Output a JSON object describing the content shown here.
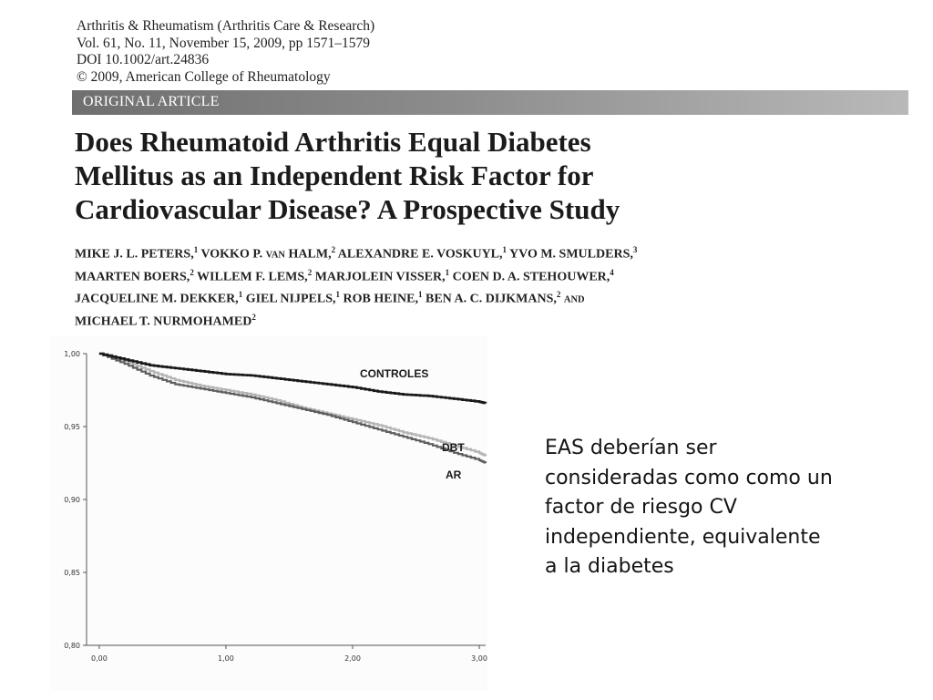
{
  "journal": {
    "line1": "Arthritis & Rheumatism (Arthritis Care & Research)",
    "line2": "Vol. 61, No. 11, November 15, 2009, pp 1571–1579",
    "line3": "DOI 10.1002/art.24836",
    "line4": "© 2009, American College of Rheumatology"
  },
  "article_type": "ORIGINAL ARTICLE",
  "title": {
    "line1": "Does Rheumatoid Arthritis Equal Diabetes",
    "line2": "Mellitus as an Independent Risk Factor for",
    "line3": "Cardiovascular Disease? A Prospective Study"
  },
  "authors": {
    "line1": [
      {
        "name": "MIKE J. L. PETERS,",
        "sup": "1"
      },
      {
        "name": " VOKKO P. ",
        "sc": "VAN",
        "name2": " HALM,",
        "sup": "2"
      },
      {
        "name": " ALEXANDRE E. VOSKUYL,",
        "sup": "1"
      },
      {
        "name": " YVO M. SMULDERS,",
        "sup": "3"
      }
    ],
    "line2": [
      {
        "name": "MAARTEN BOERS,",
        "sup": "2"
      },
      {
        "name": " WILLEM F. LEMS,",
        "sup": "2"
      },
      {
        "name": " MARJOLEIN VISSER,",
        "sup": "1"
      },
      {
        "name": " COEN D. A. STEHOUWER,",
        "sup": "4"
      }
    ],
    "line3": [
      {
        "name": "JACQUELINE M. DEKKER,",
        "sup": "1"
      },
      {
        "name": " GIEL NIJPELS,",
        "sup": "1"
      },
      {
        "name": " ROB HEINE,",
        "sup": "1"
      },
      {
        "name": " BEN A. C. DIJKMANS,",
        "sup": "2"
      },
      {
        "name": " ",
        "sc": "AND",
        "name2": ""
      }
    ],
    "line4": [
      {
        "name": "MICHAEL T. NURMOHAMED",
        "sup": "2"
      }
    ]
  },
  "chart_data": {
    "type": "line",
    "title": "",
    "xlabel": "",
    "ylabel": "",
    "xlim": [
      -0.1,
      3.05
    ],
    "ylim": [
      0.8,
      1.0
    ],
    "x_ticks": [
      "0,00",
      "1,00",
      "2,00",
      "3,00"
    ],
    "x_tick_values": [
      0,
      1,
      2,
      3
    ],
    "y_ticks": [
      "0,80",
      "0,85",
      "0,90",
      "0,95",
      "1,00"
    ],
    "y_tick_values": [
      0.8,
      0.85,
      0.9,
      0.95,
      1.0
    ],
    "series": [
      {
        "name": "CONTROLES",
        "color": "#1a1a1a",
        "x": [
          0,
          0.2,
          0.4,
          0.6,
          0.8,
          1.0,
          1.2,
          1.4,
          1.6,
          1.8,
          2.0,
          2.2,
          2.4,
          2.6,
          2.8,
          3.0,
          3.15
        ],
        "y": [
          1.0,
          0.996,
          0.992,
          0.99,
          0.988,
          0.986,
          0.985,
          0.983,
          0.981,
          0.979,
          0.977,
          0.974,
          0.972,
          0.971,
          0.969,
          0.967,
          0.966
        ]
      },
      {
        "name": "DBT",
        "color": "#b5b5b5",
        "x": [
          0,
          0.2,
          0.4,
          0.6,
          0.8,
          1.0,
          1.2,
          1.4,
          1.6,
          1.8,
          2.0,
          2.2,
          2.4,
          2.6,
          2.8,
          3.0,
          3.15
        ],
        "y": [
          1.0,
          0.995,
          0.988,
          0.982,
          0.978,
          0.975,
          0.972,
          0.968,
          0.963,
          0.959,
          0.955,
          0.951,
          0.946,
          0.942,
          0.937,
          0.932,
          0.93
        ]
      },
      {
        "name": "AR",
        "color": "#5e5e5e",
        "x": [
          0,
          0.2,
          0.4,
          0.6,
          0.8,
          1.0,
          1.2,
          1.4,
          1.6,
          1.8,
          2.0,
          2.2,
          2.4,
          2.6,
          2.8,
          3.0,
          3.15
        ],
        "y": [
          1.0,
          0.993,
          0.985,
          0.979,
          0.976,
          0.973,
          0.97,
          0.966,
          0.962,
          0.958,
          0.953,
          0.948,
          0.943,
          0.938,
          0.932,
          0.927,
          0.925
        ]
      }
    ]
  },
  "conclusion": {
    "line1": "EAS deberían ser",
    "line2": "consideradas como como un",
    "line3": "factor de riesgo CV",
    "line4": "independiente, equivalente",
    "line5": "a la diabetes"
  }
}
